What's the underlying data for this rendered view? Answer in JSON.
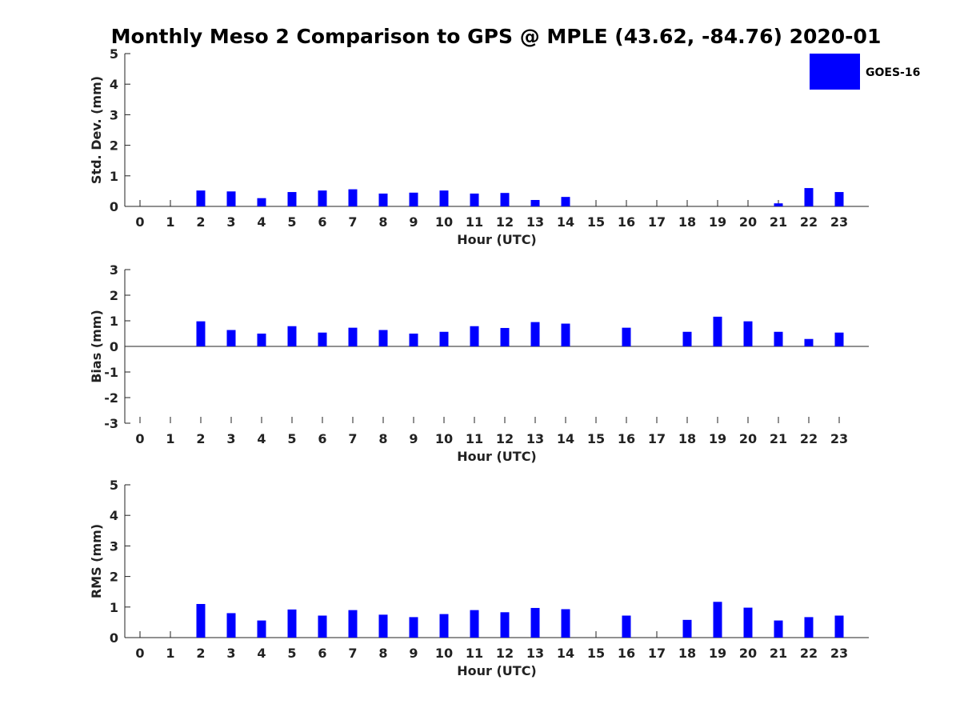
{
  "title": "Monthly Meso 2 Comparison to GPS @ MPLE (43.62, -84.76) 2020-01",
  "colors": {
    "bar": "#0000ff",
    "axis": "#222222"
  },
  "legend": {
    "label": "GOES-16",
    "placement": "top-right"
  },
  "chart_data": [
    {
      "type": "bar",
      "xlabel": "Hour (UTC)",
      "ylabel": "Std. Dev. (mm)",
      "ylim": [
        0,
        5
      ],
      "yticks": [
        0,
        1,
        2,
        3,
        4,
        5
      ],
      "grid": false,
      "categories": [
        0,
        1,
        2,
        3,
        4,
        5,
        6,
        7,
        8,
        9,
        10,
        11,
        12,
        13,
        14,
        15,
        16,
        17,
        18,
        19,
        20,
        21,
        22,
        23
      ],
      "series": [
        {
          "name": "GOES-16",
          "values": [
            null,
            null,
            0.52,
            0.49,
            0.27,
            0.47,
            0.52,
            0.56,
            0.42,
            0.45,
            0.52,
            0.42,
            0.44,
            0.21,
            0.31,
            null,
            null,
            null,
            null,
            null,
            null,
            0.1,
            0.6,
            0.47
          ]
        }
      ]
    },
    {
      "type": "bar",
      "xlabel": "Hour (UTC)",
      "ylabel": "Bias (mm)",
      "ylim": [
        -3,
        3
      ],
      "yticks": [
        -3,
        -2,
        -1,
        0,
        1,
        2,
        3
      ],
      "grid": false,
      "categories": [
        0,
        1,
        2,
        3,
        4,
        5,
        6,
        7,
        8,
        9,
        10,
        11,
        12,
        13,
        14,
        15,
        16,
        17,
        18,
        19,
        20,
        21,
        22,
        23
      ],
      "series": [
        {
          "name": "GOES-16",
          "values": [
            null,
            null,
            0.98,
            0.64,
            0.5,
            0.79,
            0.54,
            0.73,
            0.64,
            0.5,
            0.57,
            0.79,
            0.72,
            0.95,
            0.89,
            null,
            0.73,
            null,
            0.57,
            1.16,
            0.98,
            0.57,
            0.29,
            0.54
          ]
        }
      ]
    },
    {
      "type": "bar",
      "xlabel": "Hour (UTC)",
      "ylabel": "RMS (mm)",
      "ylim": [
        0,
        5
      ],
      "yticks": [
        0,
        1,
        2,
        3,
        4,
        5
      ],
      "grid": false,
      "categories": [
        0,
        1,
        2,
        3,
        4,
        5,
        6,
        7,
        8,
        9,
        10,
        11,
        12,
        13,
        14,
        15,
        16,
        17,
        18,
        19,
        20,
        21,
        22,
        23
      ],
      "series": [
        {
          "name": "GOES-16",
          "values": [
            null,
            null,
            1.1,
            0.8,
            0.56,
            0.92,
            0.72,
            0.9,
            0.75,
            0.67,
            0.77,
            0.9,
            0.83,
            0.97,
            0.93,
            null,
            0.72,
            null,
            0.58,
            1.17,
            0.98,
            0.56,
            0.67,
            0.72
          ]
        }
      ]
    }
  ]
}
